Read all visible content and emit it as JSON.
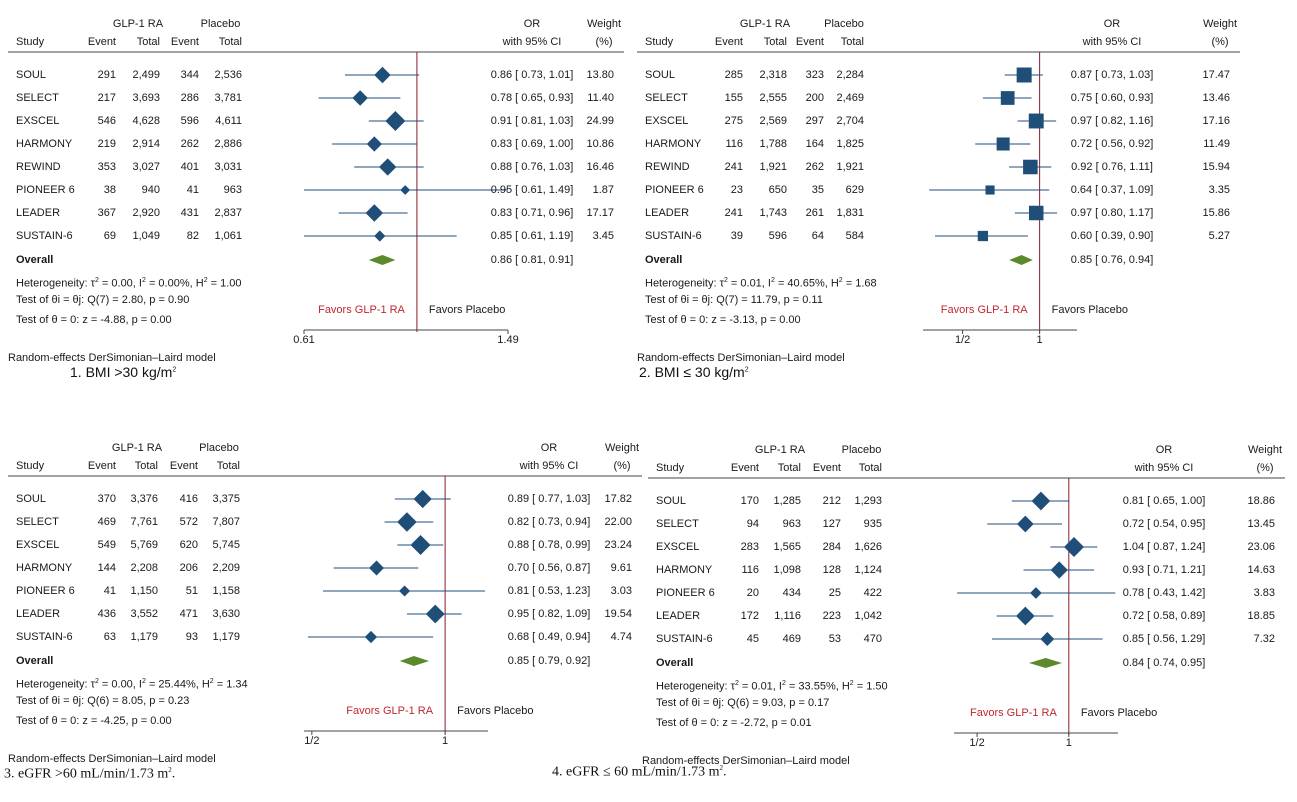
{
  "colors": {
    "marker": "#1f4e79",
    "overall": "#5a8a2a",
    "refline": "#8b1a2b",
    "favors_left": "#c0272d"
  },
  "headers": {
    "group1": "GLP-1 RA",
    "group2": "Placebo",
    "study": "Study",
    "event": "Event",
    "total": "Total",
    "or_line1": "OR",
    "or_line2": "with 95% CI",
    "weight_line1": "Weight",
    "weight_line2": "(%)"
  },
  "overall_label": "Overall",
  "model_note": "Random-effects DerSimonian–Laird model",
  "favors_left": "Favors GLP-1 RA",
  "favors_right": "Favors Placebo",
  "chart_data": [
    {
      "type": "forest",
      "caption_number": "1.",
      "caption_text": "BMI >30 kg/m",
      "caption_sup": "2",
      "xscale": "log",
      "xlim": [
        0.61,
        1.49
      ],
      "reference": 1.0,
      "ticks": [
        {
          "value": 0.61,
          "label": "0.61"
        },
        {
          "value": 1.49,
          "label": "1.49"
        }
      ],
      "studies": [
        {
          "name": "SOUL",
          "e1": "291",
          "n1": "2,499",
          "e2": "344",
          "n2": "2,536",
          "or": 0.86,
          "lo": 0.73,
          "hi": 1.01,
          "ci": "0.86 [ 0.73, 1.01]",
          "weight": 13.8,
          "weight_label": "13.80"
        },
        {
          "name": "SELECT",
          "e1": "217",
          "n1": "3,693",
          "e2": "286",
          "n2": "3,781",
          "or": 0.78,
          "lo": 0.65,
          "hi": 0.93,
          "ci": "0.78 [ 0.65, 0.93]",
          "weight": 11.4,
          "weight_label": "11.40"
        },
        {
          "name": "EXSCEL",
          "e1": "546",
          "n1": "4,628",
          "e2": "596",
          "n2": "4,611",
          "or": 0.91,
          "lo": 0.81,
          "hi": 1.03,
          "ci": "0.91 [ 0.81, 1.03]",
          "weight": 24.99,
          "weight_label": "24.99"
        },
        {
          "name": "HARMONY",
          "e1": "219",
          "n1": "2,914",
          "e2": "262",
          "n2": "2,886",
          "or": 0.83,
          "lo": 0.69,
          "hi": 1.0,
          "ci": "0.83 [ 0.69, 1.00]",
          "weight": 10.86,
          "weight_label": "10.86"
        },
        {
          "name": "REWIND",
          "e1": "353",
          "n1": "3,027",
          "e2": "401",
          "n2": "3,031",
          "or": 0.88,
          "lo": 0.76,
          "hi": 1.03,
          "ci": "0.88 [ 0.76, 1.03]",
          "weight": 16.46,
          "weight_label": "16.46"
        },
        {
          "name": "PIONEER 6",
          "e1": "38",
          "n1": "940",
          "e2": "41",
          "n2": "963",
          "or": 0.95,
          "lo": 0.61,
          "hi": 1.49,
          "ci": "0.95 [ 0.61, 1.49]",
          "weight": 1.87,
          "weight_label": "1.87"
        },
        {
          "name": "LEADER",
          "e1": "367",
          "n1": "2,920",
          "e2": "431",
          "n2": "2,837",
          "or": 0.83,
          "lo": 0.71,
          "hi": 0.96,
          "ci": "0.83 [ 0.71, 0.96]",
          "weight": 17.17,
          "weight_label": "17.17"
        },
        {
          "name": "SUSTAIN-6",
          "e1": "69",
          "n1": "1,049",
          "e2": "82",
          "n2": "1,061",
          "or": 0.85,
          "lo": 0.61,
          "hi": 1.19,
          "ci": "0.85 [ 0.61, 1.19]",
          "weight": 3.45,
          "weight_label": "3.45"
        }
      ],
      "overall": {
        "or": 0.86,
        "lo": 0.81,
        "hi": 0.91,
        "ci": "0.86 [ 0.81, 0.91]"
      },
      "heterogeneity": {
        "tau2": "0.00",
        "i2": "0.00%",
        "h2": "1.00"
      },
      "q_test": {
        "df": "7",
        "q": "2.80",
        "p": "0.90"
      },
      "z_test": {
        "z": "-4.88",
        "p": "0.00"
      }
    },
    {
      "type": "forest",
      "caption_number": "2.",
      "caption_text": "BMI ≤ 30 kg/m",
      "caption_sup": "2",
      "xscale": "log",
      "xlim": [
        0.35,
        1.4
      ],
      "reference": 1.0,
      "ticks": [
        {
          "value": 0.5,
          "label": "1/2"
        },
        {
          "value": 1.0,
          "label": "1"
        }
      ],
      "studies": [
        {
          "name": "SOUL",
          "e1": "285",
          "n1": "2,318",
          "e2": "323",
          "n2": "2,284",
          "or": 0.87,
          "lo": 0.73,
          "hi": 1.03,
          "ci": "0.87 [ 0.73, 1.03]",
          "weight": 17.47,
          "weight_label": "17.47"
        },
        {
          "name": "SELECT",
          "e1": "155",
          "n1": "2,555",
          "e2": "200",
          "n2": "2,469",
          "or": 0.75,
          "lo": 0.6,
          "hi": 0.93,
          "ci": "0.75 [ 0.60, 0.93]",
          "weight": 13.46,
          "weight_label": "13.46"
        },
        {
          "name": "EXSCEL",
          "e1": "275",
          "n1": "2,569",
          "e2": "297",
          "n2": "2,704",
          "or": 0.97,
          "lo": 0.82,
          "hi": 1.16,
          "ci": "0.97 [ 0.82, 1.16]",
          "weight": 17.16,
          "weight_label": "17.16"
        },
        {
          "name": "HARMONY",
          "e1": "116",
          "n1": "1,788",
          "e2": "164",
          "n2": "1,825",
          "or": 0.72,
          "lo": 0.56,
          "hi": 0.92,
          "ci": "0.72 [ 0.56, 0.92]",
          "weight": 11.49,
          "weight_label": "11.49"
        },
        {
          "name": "REWIND",
          "e1": "241",
          "n1": "1,921",
          "e2": "262",
          "n2": "1,921",
          "or": 0.92,
          "lo": 0.76,
          "hi": 1.11,
          "ci": "0.92 [ 0.76, 1.11]",
          "weight": 15.94,
          "weight_label": "15.94"
        },
        {
          "name": "PIONEER 6",
          "e1": "23",
          "n1": "650",
          "e2": "35",
          "n2": "629",
          "or": 0.64,
          "lo": 0.37,
          "hi": 1.09,
          "ci": "0.64 [ 0.37, 1.09]",
          "weight": 3.35,
          "weight_label": "3.35"
        },
        {
          "name": "LEADER",
          "e1": "241",
          "n1": "1,743",
          "e2": "261",
          "n2": "1,831",
          "or": 0.97,
          "lo": 0.8,
          "hi": 1.17,
          "ci": "0.97 [ 0.80, 1.17]",
          "weight": 15.86,
          "weight_label": "15.86"
        },
        {
          "name": "SUSTAIN-6",
          "e1": "39",
          "n1": "596",
          "e2": "64",
          "n2": "584",
          "or": 0.6,
          "lo": 0.39,
          "hi": 0.9,
          "ci": "0.60 [ 0.39, 0.90]",
          "weight": 5.27,
          "weight_label": "5.27"
        }
      ],
      "overall": {
        "or": 0.85,
        "lo": 0.76,
        "hi": 0.94,
        "ci": "0.85 [ 0.76, 0.94]"
      },
      "heterogeneity": {
        "tau2": "0.01",
        "i2": "40.65%",
        "h2": "1.68"
      },
      "q_test": {
        "df": "7",
        "q": "11.79",
        "p": "0.11"
      },
      "z_test": {
        "z": "-3.13",
        "p": "0.00"
      }
    },
    {
      "type": "forest",
      "caption_number": "3.",
      "caption_text": "eGFR >60 mL/min/1.73 m",
      "caption_sup": "2",
      "caption_trail": ".",
      "xscale": "log",
      "xlim": [
        0.48,
        1.25
      ],
      "reference": 1.0,
      "ticks": [
        {
          "value": 0.5,
          "label": "1/2"
        },
        {
          "value": 1.0,
          "label": "1"
        }
      ],
      "studies": [
        {
          "name": "SOUL",
          "e1": "370",
          "n1": "3,376",
          "e2": "416",
          "n2": "3,375",
          "or": 0.89,
          "lo": 0.77,
          "hi": 1.03,
          "ci": "0.89 [ 0.77, 1.03]",
          "weight": 17.82,
          "weight_label": "17.82"
        },
        {
          "name": "SELECT",
          "e1": "469",
          "n1": "7,761",
          "e2": "572",
          "n2": "7,807",
          "or": 0.82,
          "lo": 0.73,
          "hi": 0.94,
          "ci": "0.82 [ 0.73, 0.94]",
          "weight": 22.0,
          "weight_label": "22.00"
        },
        {
          "name": "EXSCEL",
          "e1": "549",
          "n1": "5,769",
          "e2": "620",
          "n2": "5,745",
          "or": 0.88,
          "lo": 0.78,
          "hi": 0.99,
          "ci": "0.88 [ 0.78, 0.99]",
          "weight": 23.24,
          "weight_label": "23.24"
        },
        {
          "name": "HARMONY",
          "e1": "144",
          "n1": "2,208",
          "e2": "206",
          "n2": "2,209",
          "or": 0.7,
          "lo": 0.56,
          "hi": 0.87,
          "ci": "0.70 [ 0.56, 0.87]",
          "weight": 9.61,
          "weight_label": "9.61"
        },
        {
          "name": "PIONEER 6",
          "e1": "41",
          "n1": "1,150",
          "e2": "51",
          "n2": "1,158",
          "or": 0.81,
          "lo": 0.53,
          "hi": 1.23,
          "ci": "0.81 [ 0.53, 1.23]",
          "weight": 3.03,
          "weight_label": "3.03"
        },
        {
          "name": "LEADER",
          "e1": "436",
          "n1": "3,552",
          "e2": "471",
          "n2": "3,630",
          "or": 0.95,
          "lo": 0.82,
          "hi": 1.09,
          "ci": "0.95 [ 0.82, 1.09]",
          "weight": 19.54,
          "weight_label": "19.54"
        },
        {
          "name": "SUSTAIN-6",
          "e1": "63",
          "n1": "1,179",
          "e2": "93",
          "n2": "1,179",
          "or": 0.68,
          "lo": 0.49,
          "hi": 0.94,
          "ci": "0.68 [ 0.49, 0.94]",
          "weight": 4.74,
          "weight_label": "4.74"
        }
      ],
      "overall": {
        "or": 0.85,
        "lo": 0.79,
        "hi": 0.92,
        "ci": "0.85 [ 0.79, 0.92]"
      },
      "heterogeneity": {
        "tau2": "0.00",
        "i2": "25.44%",
        "h2": "1.34"
      },
      "q_test": {
        "df": "6",
        "q": "8.05",
        "p": "0.23"
      },
      "z_test": {
        "z": "-4.25",
        "p": "0.00"
      }
    },
    {
      "type": "forest",
      "caption_number": "4.",
      "caption_text": "eGFR ≤ 60 mL/min/1.73 m",
      "caption_sup": "2",
      "caption_trail": ".",
      "xscale": "log",
      "xlim": [
        0.42,
        1.45
      ],
      "reference": 1.0,
      "ticks": [
        {
          "value": 0.5,
          "label": "1/2"
        },
        {
          "value": 1.0,
          "label": "1"
        }
      ],
      "studies": [
        {
          "name": "SOUL",
          "e1": "170",
          "n1": "1,285",
          "e2": "212",
          "n2": "1,293",
          "or": 0.81,
          "lo": 0.65,
          "hi": 1.0,
          "ci": "0.81 [ 0.65, 1.00]",
          "weight": 18.86,
          "weight_label": "18.86"
        },
        {
          "name": "SELECT",
          "e1": "94",
          "n1": "963",
          "e2": "127",
          "n2": "935",
          "or": 0.72,
          "lo": 0.54,
          "hi": 0.95,
          "ci": "0.72 [ 0.54, 0.95]",
          "weight": 13.45,
          "weight_label": "13.45"
        },
        {
          "name": "EXSCEL",
          "e1": "283",
          "n1": "1,565",
          "e2": "284",
          "n2": "1,626",
          "or": 1.04,
          "lo": 0.87,
          "hi": 1.24,
          "ci": "1.04 [ 0.87, 1.24]",
          "weight": 23.06,
          "weight_label": "23.06"
        },
        {
          "name": "HARMONY",
          "e1": "116",
          "n1": "1,098",
          "e2": "128",
          "n2": "1,124",
          "or": 0.93,
          "lo": 0.71,
          "hi": 1.21,
          "ci": "0.93 [ 0.71, 1.21]",
          "weight": 14.63,
          "weight_label": "14.63"
        },
        {
          "name": "PIONEER 6",
          "e1": "20",
          "n1": "434",
          "e2": "25",
          "n2": "422",
          "or": 0.78,
          "lo": 0.43,
          "hi": 1.42,
          "ci": "0.78 [ 0.43, 1.42]",
          "weight": 3.83,
          "weight_label": "3.83"
        },
        {
          "name": "LEADER",
          "e1": "172",
          "n1": "1,116",
          "e2": "223",
          "n2": "1,042",
          "or": 0.72,
          "lo": 0.58,
          "hi": 0.89,
          "ci": "0.72 [ 0.58, 0.89]",
          "weight": 18.85,
          "weight_label": "18.85"
        },
        {
          "name": "SUSTAIN-6",
          "e1": "45",
          "n1": "469",
          "e2": "53",
          "n2": "470",
          "or": 0.85,
          "lo": 0.56,
          "hi": 1.29,
          "ci": "0.85 [ 0.56, 1.29]",
          "weight": 7.32,
          "weight_label": "7.32"
        }
      ],
      "overall": {
        "or": 0.84,
        "lo": 0.74,
        "hi": 0.95,
        "ci": "0.84 [ 0.74, 0.95]"
      },
      "heterogeneity": {
        "tau2": "0.01",
        "i2": "33.55%",
        "h2": "1.50"
      },
      "q_test": {
        "df": "6",
        "q": "9.03",
        "p": "0.17"
      },
      "z_test": {
        "z": "-2.72",
        "p": "0.01"
      }
    }
  ]
}
